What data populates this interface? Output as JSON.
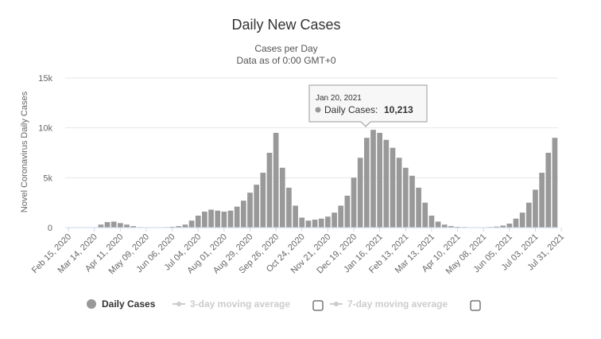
{
  "chart_data": {
    "type": "bar",
    "title": "Daily New Cases",
    "subtitle_line1": "Cases per Day",
    "subtitle_line2": "Data as of 0:00 GMT+0",
    "ylabel": "Novel Coronavirus Daily Cases",
    "xlabel": "",
    "ylim": [
      0,
      15000
    ],
    "y_ticks": [
      "0",
      "5k",
      "10k",
      "15k"
    ],
    "y_tick_values": [
      0,
      5000,
      10000,
      15000
    ],
    "grid": true,
    "bar_color": "#999999",
    "x_tick_labels": [
      "Feb 15, 2020",
      "Mar 14, 2020",
      "Apr 11, 2020",
      "May 09, 2020",
      "Jun 06, 2020",
      "Jul 04, 2020",
      "Aug 01, 2020",
      "Aug 29, 2020",
      "Sep 26, 2020",
      "Oct 24, 2020",
      "Nov 21, 2020",
      "Dec 19, 2020",
      "Jan 16, 2021",
      "Feb 13, 2021",
      "Mar 13, 2021",
      "Apr 10, 2021",
      "May 08, 2021",
      "Jun 05, 2021",
      "Jul 03, 2021",
      "Jul 31, 2021"
    ],
    "weekly_start": "Feb 15, 2020",
    "weekly_values": [
      0,
      0,
      0,
      0,
      0,
      300,
      550,
      600,
      450,
      300,
      150,
      50,
      30,
      20,
      30,
      50,
      80,
      150,
      300,
      700,
      1200,
      1600,
      1800,
      1700,
      1600,
      1700,
      2100,
      2700,
      3500,
      4300,
      5500,
      7500,
      9500,
      6000,
      4000,
      2200,
      1000,
      700,
      800,
      900,
      1100,
      1500,
      2200,
      3200,
      5000,
      7000,
      9000,
      9800,
      9500,
      8800,
      8000,
      7000,
      6000,
      5200,
      4000,
      2500,
      1200,
      600,
      300,
      150,
      80,
      60,
      40,
      30,
      40,
      60,
      100,
      200,
      400,
      900,
      1500,
      2500,
      3800,
      5500,
      7500,
      9000
    ],
    "legend": [
      {
        "label": "Daily Cases",
        "active": true
      },
      {
        "label": "3-day moving average",
        "active": false
      },
      {
        "label": "7-day moving average",
        "active": false
      }
    ],
    "tooltip": {
      "date": "Jan 20, 2021",
      "label": "Daily Cases:",
      "value": "10,213",
      "y": 10213
    }
  }
}
